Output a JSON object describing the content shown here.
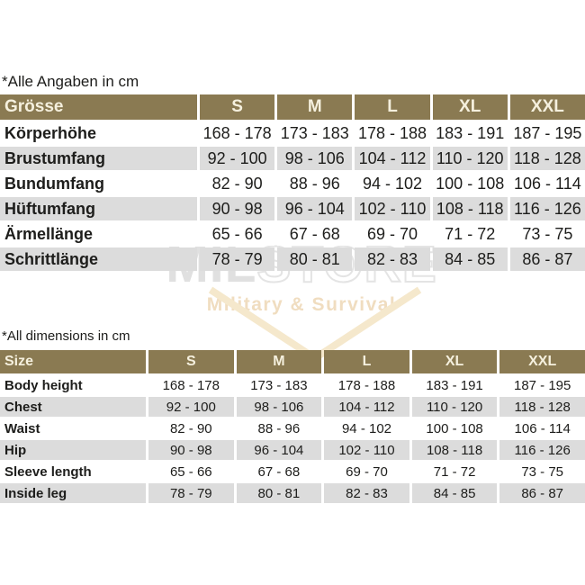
{
  "colors": {
    "header_bg": "#8a7a52",
    "header_text": "#f5f0de",
    "row_alt_bg": "#dcdcdc",
    "row_bg": "#ffffff",
    "body_text": "#1d1d1b",
    "watermark_gray": "#e0e0e0",
    "watermark_tan": "#f0ddc0"
  },
  "watermark": {
    "brand_part1": "MIL",
    "brand_part2": "STORE",
    "tagline": "Military & Survival"
  },
  "german_table": {
    "note": "*Alle Angaben in cm",
    "header": [
      "Grösse",
      "S",
      "M",
      "L",
      "XL",
      "XXL"
    ],
    "rows": [
      {
        "label": "Körperhöhe",
        "values": [
          "168 - 178",
          "173 - 183",
          "178 - 188",
          "183 - 191",
          "187 - 195"
        ]
      },
      {
        "label": "Brustumfang",
        "values": [
          "92 - 100",
          "98 - 106",
          "104 - 112",
          "110 - 120",
          "118 - 128"
        ]
      },
      {
        "label": "Bundumfang",
        "values": [
          "82 - 90",
          "88 - 96",
          "94 - 102",
          "100 - 108",
          "106 - 114"
        ]
      },
      {
        "label": "Hüftumfang",
        "values": [
          "90 - 98",
          "96 - 104",
          "102 - 110",
          "108 - 118",
          "116 - 126"
        ]
      },
      {
        "label": "Ärmellänge",
        "values": [
          "65 - 66",
          "67 - 68",
          "69 - 70",
          "71 - 72",
          "73 - 75"
        ]
      },
      {
        "label": "Schrittlänge",
        "values": [
          "78 - 79",
          "80 - 81",
          "82 - 83",
          "84 - 85",
          "86 - 87"
        ]
      }
    ]
  },
  "english_table": {
    "note": "*All dimensions in cm",
    "header": [
      "Size",
      "S",
      "M",
      "L",
      "XL",
      "XXL"
    ],
    "rows": [
      {
        "label": "Body height",
        "values": [
          "168 - 178",
          "173 - 183",
          "178 - 188",
          "183 - 191",
          "187 - 195"
        ]
      },
      {
        "label": "Chest",
        "values": [
          "92 - 100",
          "98 - 106",
          "104 - 112",
          "110 - 120",
          "118 - 128"
        ]
      },
      {
        "label": "Waist",
        "values": [
          "82 - 90",
          "88 - 96",
          "94 - 102",
          "100 - 108",
          "106 - 114"
        ]
      },
      {
        "label": "Hip",
        "values": [
          "90 - 98",
          "96 - 104",
          "102 - 110",
          "108 - 118",
          "116 - 126"
        ]
      },
      {
        "label": "Sleeve length",
        "values": [
          "65 - 66",
          "67 - 68",
          "69 - 70",
          "71 - 72",
          "73 - 75"
        ]
      },
      {
        "label": "Inside leg",
        "values": [
          "78 - 79",
          "80 - 81",
          "82 - 83",
          "84 - 85",
          "86 - 87"
        ]
      }
    ]
  }
}
